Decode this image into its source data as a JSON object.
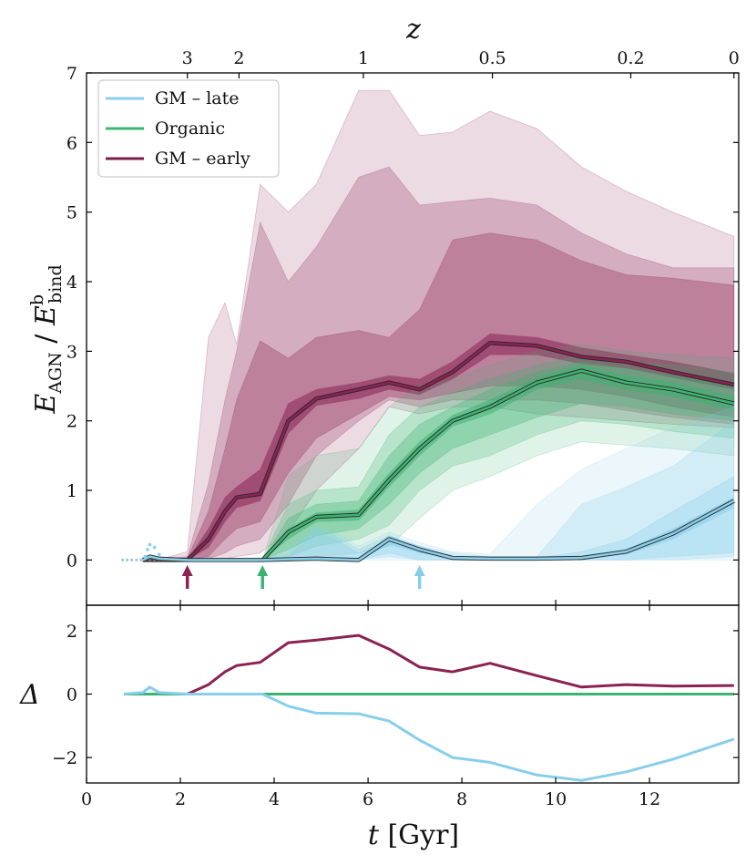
{
  "chart_data": [
    {
      "type": "area",
      "panel": "main",
      "ylabel": "E_AGN / E_bind^b",
      "xlim": [
        0,
        13.9
      ],
      "ylim": [
        -0.65,
        7.0
      ],
      "xticks": [
        0,
        2,
        4,
        6,
        8,
        10,
        12
      ],
      "yticks": [
        0,
        1,
        2,
        3,
        4,
        5,
        6,
        7
      ],
      "top_axis": {
        "label": "z",
        "ticks": [
          {
            "label": "3",
            "t": 2.15
          },
          {
            "label": "2",
            "t": 3.25
          },
          {
            "label": "1",
            "t": 5.9
          },
          {
            "label": "0.5",
            "t": 8.65
          },
          {
            "label": "0.2",
            "t": 11.6
          },
          {
            "label": "0",
            "t": 13.8
          }
        ]
      },
      "legend": {
        "position": "top-left",
        "entries": [
          {
            "label": "GM – late",
            "color": "#87CEEB"
          },
          {
            "label": "Organic",
            "color": "#3CB371"
          },
          {
            "label": "GM – early",
            "color": "#7B1E4E"
          }
        ]
      },
      "series": [
        {
          "name": "GM – early",
          "color": "#8B2252",
          "start_arrow_t": 2.15,
          "t": [
            1.2,
            1.6,
            2.15,
            2.6,
            2.95,
            3.2,
            3.7,
            4.3,
            4.9,
            5.8,
            6.45,
            7.1,
            7.8,
            8.6,
            9.6,
            10.55,
            11.5,
            12.5,
            13.8
          ],
          "median": [
            0,
            0,
            0,
            0.3,
            0.7,
            0.9,
            0.95,
            2.0,
            2.32,
            2.45,
            2.55,
            2.45,
            2.7,
            3.12,
            3.08,
            2.92,
            2.85,
            2.7,
            2.52
          ],
          "bands": [
            {
              "lo": [
                0,
                0,
                0,
                0.18,
                0.55,
                0.75,
                0.85,
                1.82,
                2.22,
                2.32,
                2.45,
                2.38,
                2.6,
                2.95,
                2.95,
                2.82,
                2.76,
                2.62,
                2.45
              ],
              "hi": [
                0,
                0,
                0,
                0.45,
                0.9,
                1.05,
                1.3,
                2.25,
                2.45,
                2.55,
                2.65,
                2.6,
                2.85,
                3.25,
                3.2,
                3.05,
                2.95,
                2.85,
                2.68
              ]
            },
            {
              "lo": [
                0,
                0,
                0,
                0.05,
                0.3,
                0.45,
                0.55,
                1.25,
                1.75,
                2.1,
                2.35,
                2.3,
                2.4,
                2.5,
                2.5,
                2.45,
                2.35,
                2.2,
                2.05
              ],
              "hi": [
                0,
                0,
                0.02,
                0.7,
                1.6,
                2.3,
                3.15,
                2.9,
                3.2,
                3.3,
                3.2,
                3.6,
                4.6,
                4.7,
                4.6,
                4.3,
                4.1,
                4.05,
                3.95
              ]
            },
            {
              "lo": [
                0,
                0,
                0,
                0.02,
                0.1,
                0.2,
                0.3,
                0.8,
                1.5,
                2.0,
                2.3,
                2.2,
                2.3,
                2.3,
                2.3,
                2.25,
                2.15,
                2.05,
                1.95
              ],
              "hi": [
                0,
                0.01,
                0.05,
                1.1,
                2.3,
                3.0,
                4.85,
                4.0,
                4.5,
                5.5,
                5.65,
                5.1,
                5.15,
                5.2,
                5.1,
                4.7,
                4.4,
                4.2,
                4.2
              ]
            },
            {
              "lo": [
                0,
                0,
                0,
                0,
                0.02,
                0.05,
                0.1,
                0.4,
                1.0,
                1.6,
                2.2,
                2.1,
                2.2,
                2.2,
                2.1,
                2.05,
                2.0,
                1.95,
                1.9
              ],
              "hi": [
                0,
                0.02,
                0.12,
                3.2,
                3.7,
                3.1,
                5.4,
                5.0,
                5.4,
                6.75,
                6.75,
                6.1,
                6.15,
                6.45,
                6.2,
                5.65,
                5.3,
                5.0,
                4.65
              ]
            }
          ]
        },
        {
          "name": "Organic",
          "color": "#3CB371",
          "start_arrow_t": 3.75,
          "t": [
            3.75,
            4.3,
            4.9,
            5.8,
            6.45,
            7.1,
            7.8,
            8.6,
            9.6,
            10.55,
            11.5,
            12.5,
            13.8
          ],
          "median": [
            0,
            0.4,
            0.62,
            0.65,
            1.15,
            1.6,
            2.0,
            2.2,
            2.55,
            2.72,
            2.55,
            2.45,
            2.25
          ],
          "bands": [
            {
              "lo": [
                0,
                0.3,
                0.55,
                0.57,
                1.05,
                1.5,
                1.92,
                2.1,
                2.45,
                2.6,
                2.45,
                2.35,
                2.15
              ],
              "hi": [
                0,
                0.45,
                0.68,
                0.72,
                1.25,
                1.7,
                2.08,
                2.3,
                2.62,
                2.8,
                2.65,
                2.55,
                2.35
              ]
            },
            {
              "lo": [
                0,
                0.15,
                0.35,
                0.45,
                0.8,
                1.25,
                1.6,
                1.8,
                2.05,
                2.25,
                2.2,
                2.1,
                2.0
              ],
              "hi": [
                0,
                0.6,
                0.8,
                0.85,
                1.5,
                1.95,
                2.2,
                2.45,
                2.7,
                2.85,
                2.75,
                2.65,
                2.5
              ]
            },
            {
              "lo": [
                0,
                0.05,
                0.2,
                0.3,
                0.5,
                1.0,
                1.35,
                1.5,
                1.8,
                2.0,
                1.95,
                1.85,
                1.75
              ],
              "hi": [
                0,
                0.8,
                1.0,
                1.05,
                1.8,
                2.2,
                2.4,
                2.6,
                2.8,
                2.95,
                2.85,
                2.8,
                2.7
              ]
            },
            {
              "lo": [
                0,
                0,
                0.05,
                0.1,
                0.2,
                0.6,
                1.0,
                1.2,
                1.5,
                1.7,
                1.65,
                1.6,
                1.5
              ],
              "hi": [
                0,
                1.2,
                1.5,
                1.6,
                2.2,
                2.5,
                2.6,
                2.8,
                3.0,
                3.1,
                3.0,
                2.95,
                2.9
              ]
            }
          ]
        },
        {
          "name": "GM – late",
          "color": "#87CEEB",
          "start_arrow_t": 7.1,
          "t": [
            1.2,
            1.35,
            1.55,
            2.15,
            3.75,
            4.3,
            4.9,
            5.3,
            5.8,
            6.45,
            7.1,
            7.8,
            8.6,
            9.6,
            10.55,
            11.5,
            12.5,
            13.8
          ],
          "median": [
            0,
            0.05,
            0.02,
            0,
            0,
            0.01,
            0.02,
            0.01,
            0,
            0.3,
            0.15,
            0.03,
            0.02,
            0.02,
            0.03,
            0.12,
            0.38,
            0.85
          ],
          "bands": [
            {
              "lo": [
                0,
                0.05,
                0.02,
                0,
                0,
                0,
                0,
                0,
                0,
                0.22,
                0.1,
                0.02,
                0.01,
                0.01,
                0.02,
                0.08,
                0.3,
                0.75
              ],
              "hi": [
                0,
                0.05,
                0.02,
                0,
                0,
                0.03,
                0.05,
                0.03,
                0.02,
                0.35,
                0.2,
                0.05,
                0.03,
                0.03,
                0.05,
                0.15,
                0.45,
                0.9
              ]
            },
            {
              "lo": [
                0,
                0,
                0,
                0,
                0,
                0,
                0,
                0,
                0,
                0.1,
                0,
                0,
                0,
                0,
                0,
                0,
                0.05,
                0.1
              ],
              "hi": [
                0,
                0,
                0,
                0,
                0,
                0.05,
                0.4,
                0.3,
                0.1,
                0.3,
                0.15,
                0.05,
                0.03,
                0.03,
                0.12,
                0.3,
                0.7,
                1.2
              ]
            },
            {
              "lo": [
                0,
                0,
                0,
                0,
                0,
                0,
                0,
                0,
                0,
                0.05,
                0,
                0,
                0,
                0,
                0,
                0,
                0,
                0.05
              ],
              "hi": [
                0,
                0,
                0,
                0,
                0,
                0.1,
                0.45,
                0.35,
                0.15,
                0.35,
                0.2,
                0.1,
                0.05,
                0.05,
                0.8,
                1.05,
                1.35,
                2.0
              ]
            },
            {
              "lo": [
                0,
                0,
                0,
                0,
                0,
                0,
                0,
                0,
                0,
                0,
                0,
                0,
                0,
                0,
                0,
                0,
                0,
                0
              ],
              "hi": [
                0,
                0,
                0,
                0,
                0,
                0.2,
                0.5,
                0.4,
                0.2,
                0.4,
                0.25,
                0.12,
                0.08,
                0.8,
                1.3,
                1.6,
                1.9,
                2.2
              ]
            }
          ],
          "early_dots": {
            "t": [
              1.25,
              1.3,
              1.35,
              1.45,
              1.55
            ],
            "y": [
              0.05,
              0.15,
              0.22,
              0.18,
              0.08
            ]
          }
        }
      ]
    },
    {
      "type": "line",
      "panel": "difference",
      "xlabel": "t [Gyr]",
      "ylabel": "Δ",
      "xlim": [
        0,
        13.9
      ],
      "ylim": [
        -2.8,
        2.8
      ],
      "xticks": [
        0,
        2,
        4,
        6,
        8,
        10,
        12
      ],
      "yticks": [
        -2,
        0,
        2
      ],
      "series": [
        {
          "name": "GM – early",
          "color": "#8B2252",
          "t": [
            0.8,
            1.2,
            1.6,
            2.15,
            2.6,
            2.95,
            3.2,
            3.7,
            4.3,
            4.9,
            5.8,
            6.45,
            7.1,
            7.8,
            8.6,
            9.6,
            10.55,
            11.5,
            12.5,
            13.8
          ],
          "values": [
            0,
            0,
            0,
            0,
            0.3,
            0.7,
            0.9,
            1.0,
            1.62,
            1.7,
            1.85,
            1.42,
            0.85,
            0.7,
            0.97,
            0.58,
            0.22,
            0.3,
            0.25,
            0.27
          ]
        },
        {
          "name": "Organic",
          "color": "#3CB371",
          "t": [
            0.8,
            13.8
          ],
          "values": [
            0,
            0
          ]
        },
        {
          "name": "GM – late",
          "color": "#87CEEB",
          "t": [
            0.8,
            1.2,
            1.35,
            1.55,
            2.15,
            3.75,
            4.3,
            4.9,
            5.8,
            6.45,
            7.1,
            7.8,
            8.6,
            9.6,
            10.55,
            11.5,
            12.5,
            13.8
          ],
          "values": [
            0,
            0.05,
            0.22,
            0.05,
            0,
            0,
            -0.38,
            -0.6,
            -0.62,
            -0.85,
            -1.45,
            -2.0,
            -2.15,
            -2.55,
            -2.72,
            -2.45,
            -2.05,
            -1.42
          ]
        }
      ]
    }
  ]
}
